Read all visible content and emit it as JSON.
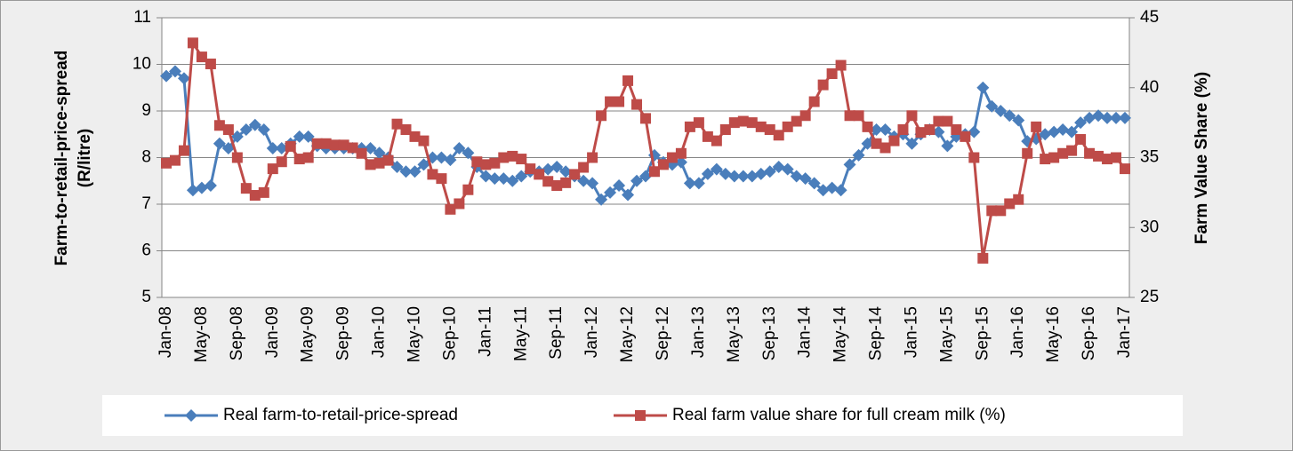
{
  "chart_data": {
    "type": "line",
    "ylabel": [
      "Farm-to-retail-price-spread",
      "(R/litre)"
    ],
    "y2label": "Farm Value Share (%)",
    "categories": [
      "Jan-08",
      null,
      null,
      null,
      "May-08",
      null,
      null,
      null,
      "Sep-08",
      null,
      null,
      null,
      "Jan-09",
      null,
      null,
      null,
      "May-09",
      null,
      null,
      null,
      "Sep-09",
      null,
      null,
      null,
      "Jan-10",
      null,
      null,
      null,
      "May-10",
      null,
      null,
      null,
      "Sep-10",
      null,
      null,
      null,
      "Jan-11",
      null,
      null,
      null,
      "May-11",
      null,
      null,
      null,
      "Sep-11",
      null,
      null,
      null,
      "Jan-12",
      null,
      null,
      null,
      "May-12",
      null,
      null,
      null,
      "Sep-12",
      null,
      null,
      null,
      "Jan-13",
      null,
      null,
      null,
      "May-13",
      null,
      null,
      null,
      "Sep-13",
      null,
      null,
      null,
      "Jan-14",
      null,
      null,
      null,
      "May-14",
      null,
      null,
      null,
      "Sep-14",
      null,
      null,
      null,
      "Jan-15",
      null,
      null,
      null,
      "May-15",
      null,
      null,
      null,
      "Sep-15",
      null,
      null,
      null,
      "Jan-16",
      null,
      null,
      null,
      "May-16",
      null,
      null,
      null,
      "Sep-16",
      null,
      null,
      null,
      "Jan-17"
    ],
    "series": [
      {
        "name": "Real farm-to-retail-price-spread",
        "color": "#4a7ebb",
        "marker": "diamond",
        "axis": "y",
        "values": [
          9.75,
          9.85,
          9.7,
          7.3,
          7.35,
          7.4,
          8.3,
          8.2,
          8.45,
          8.6,
          8.7,
          8.6,
          8.2,
          8.2,
          8.3,
          8.45,
          8.45,
          8.25,
          8.2,
          8.2,
          8.2,
          8.2,
          8.2,
          8.2,
          8.1,
          8.0,
          7.8,
          7.7,
          7.7,
          7.85,
          8.0,
          8.0,
          7.95,
          8.2,
          8.1,
          7.8,
          7.6,
          7.55,
          7.55,
          7.5,
          7.6,
          7.7,
          7.7,
          7.75,
          7.8,
          7.7,
          7.6,
          7.5,
          7.45,
          7.1,
          7.25,
          7.4,
          7.2,
          7.5,
          7.6,
          8.05,
          7.9,
          7.85,
          7.9,
          7.45,
          7.45,
          7.65,
          7.75,
          7.65,
          7.6,
          7.6,
          7.6,
          7.65,
          7.7,
          7.8,
          7.75,
          7.6,
          7.55,
          7.45,
          7.3,
          7.35,
          7.3,
          7.85,
          8.05,
          8.3,
          8.6,
          8.6,
          8.45,
          8.5,
          8.3,
          8.5,
          8.6,
          8.55,
          8.25,
          8.45,
          8.5,
          8.55,
          9.5,
          9.1,
          9.0,
          8.9,
          8.8,
          8.35,
          8.4,
          8.5,
          8.55,
          8.6,
          8.55,
          8.75,
          8.85,
          8.9,
          8.85,
          8.85,
          8.85
        ]
      },
      {
        "name": "Real farm value share for full cream milk (%)",
        "color": "#be4b48",
        "marker": "square",
        "axis": "y2",
        "values": [
          34.6,
          34.8,
          35.5,
          43.2,
          42.2,
          41.7,
          37.3,
          37.0,
          35.0,
          32.8,
          32.3,
          32.5,
          34.2,
          34.7,
          35.8,
          34.9,
          35.0,
          36.0,
          36.0,
          35.9,
          35.9,
          35.7,
          35.3,
          34.5,
          34.6,
          34.8,
          37.4,
          37.0,
          36.5,
          36.2,
          33.8,
          33.5,
          31.3,
          31.7,
          32.7,
          34.7,
          34.5,
          34.6,
          35.0,
          35.1,
          34.9,
          34.2,
          33.8,
          33.3,
          33.0,
          33.2,
          33.8,
          34.3,
          35.0,
          38.0,
          39.0,
          39.0,
          40.5,
          38.8,
          37.8,
          34.0,
          34.5,
          35.0,
          35.3,
          37.2,
          37.5,
          36.5,
          36.2,
          37.0,
          37.5,
          37.6,
          37.5,
          37.2,
          37.0,
          36.6,
          37.2,
          37.6,
          38.0,
          39.0,
          40.2,
          41.0,
          41.6,
          38.0,
          38.0,
          37.2,
          36.0,
          35.7,
          36.2,
          37.0,
          38.0,
          36.8,
          37.0,
          37.6,
          37.6,
          37.0,
          36.5,
          35.0,
          27.8,
          31.2,
          31.2,
          31.7,
          32.0,
          35.3,
          37.2,
          34.9,
          35.0,
          35.3,
          35.5,
          36.3,
          35.3,
          35.1,
          34.9,
          35.0,
          34.2
        ]
      }
    ],
    "ylim": [
      5,
      11
    ],
    "yticks": [
      5,
      6,
      7,
      8,
      9,
      10,
      11
    ],
    "y2lim": [
      25,
      45
    ],
    "y2ticks": [
      25,
      30,
      35,
      40,
      45
    ],
    "grid": true,
    "legend": "bottom"
  }
}
